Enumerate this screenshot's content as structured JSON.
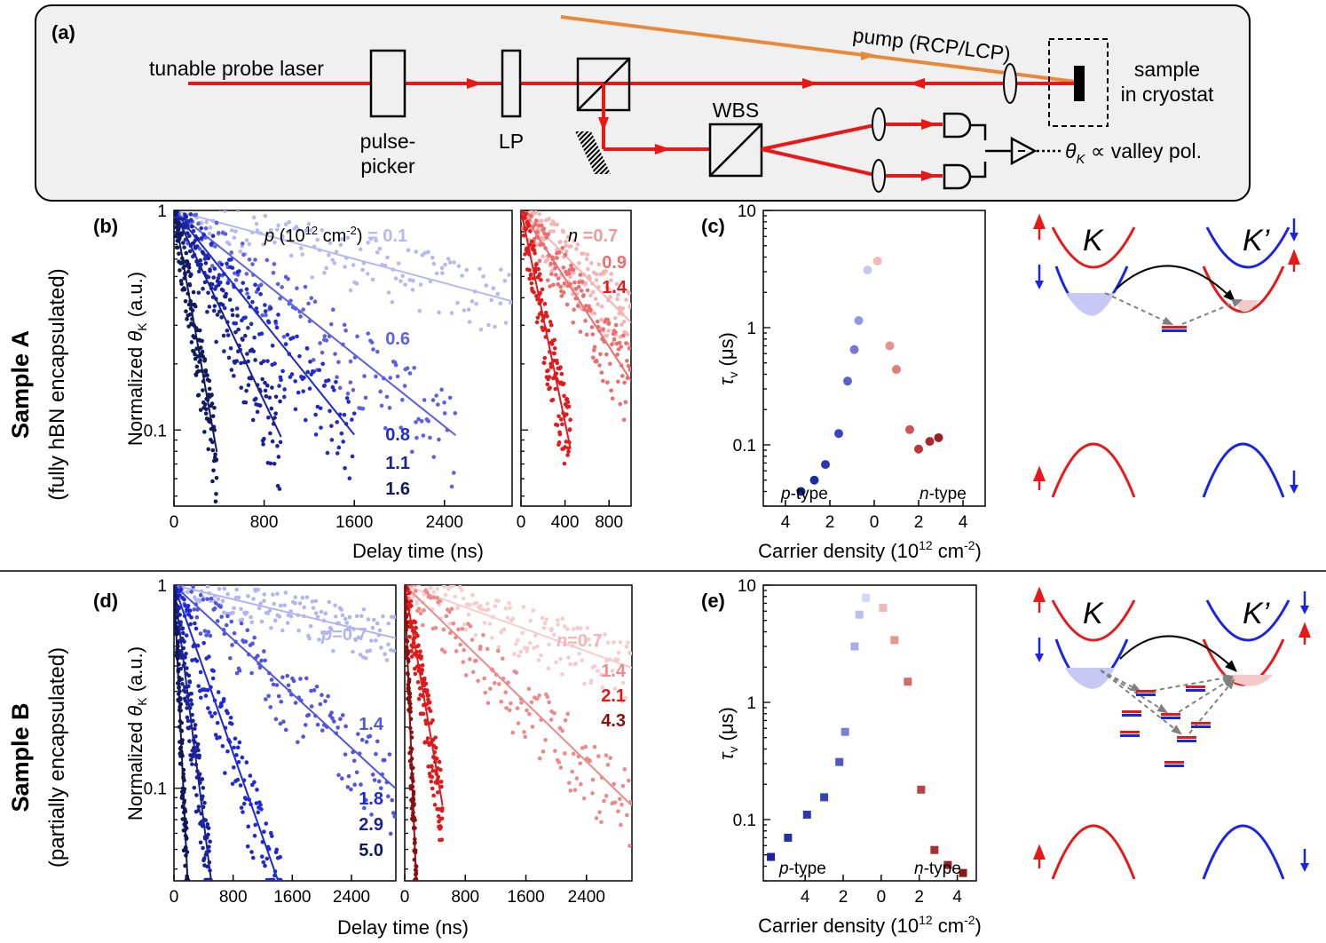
{
  "setup": {
    "label": "(a)",
    "probe": "tunable probe laser",
    "pump": "pump (RCP/LCP)",
    "pulse_picker": [
      "pulse-",
      "picker"
    ],
    "lp": "LP",
    "wbs": "WBS",
    "sample": [
      "sample",
      "in cryostat"
    ],
    "signal_theta": "θ",
    "signal_sub": "K",
    "signal_rest": " ∝ valley pol."
  },
  "rows": {
    "a_title": "Sample A",
    "a_sub": "(fully hBN encapsulated)",
    "b_title": "Sample B",
    "b_sub": "(partially encapsulated)"
  },
  "shared": {
    "ylabel_main": "Normalized ",
    "ylabel_theta": "θ",
    "ylabel_sub": "K",
    "ylabel_tail": " (a.u.)",
    "xlabel_delay": "Delay time (ns)",
    "tau_symbol": "τ",
    "tau_sub": "v",
    "tau_unit": " (μs)",
    "carrier_main": "Carrier density (10",
    "carrier_exp": "12",
    "carrier_tail": " cm",
    "carrier_exp2": "-2",
    "carrier_close": ")",
    "p_type_p": "p",
    "p_type_rest": "-type",
    "n_type_n": "n",
    "n_type_rest": "-type",
    "valley_K": "K",
    "valley_Kp": "K’"
  },
  "panel_b": {
    "label": "(b)",
    "legend_p": "p",
    "legend_unit": " (10",
    "legend_exp": "12",
    "legend_cm": " cm",
    "legend_exp2": "-2",
    "legend_close": ")",
    "legend_eq": " = 0.1",
    "n_label": "n",
    "n_eq": " =0.7"
  },
  "panel_d": {
    "label": "(d)",
    "p_label": "p",
    "p_eq": "=0.7",
    "n_label": "n",
    "n_eq": "=0.7"
  },
  "panel_c": {
    "label": "(c)"
  },
  "panel_e": {
    "label": "(e)"
  },
  "chart_data": [
    {
      "id": "b_left",
      "type": "scatter",
      "title": "",
      "xlabel": "Delay time (ns)",
      "ylabel": "Normalized θK (a.u.)",
      "xlim": [
        0,
        3000
      ],
      "ylim": [
        0.045,
        1
      ],
      "yscale": "log",
      "xticks": [
        "0",
        "800",
        "1600",
        "2400"
      ],
      "yticks": [
        "1",
        "0.1"
      ],
      "series": [
        {
          "name": "0.1",
          "tau_ns": 3150,
          "xmax": 3000,
          "color": "#b6b8f0",
          "label": "0.1"
        },
        {
          "name": "0.6",
          "tau_ns": 1060,
          "xmax": 2500,
          "color": "#5c60e6",
          "label": "0.6"
        },
        {
          "name": "0.8",
          "tau_ns": 680,
          "xmax": 1600,
          "color": "#1f2acf",
          "label": "0.8"
        },
        {
          "name": "1.1",
          "tau_ns": 400,
          "xmax": 950,
          "color": "#1a2299",
          "label": "1.1"
        },
        {
          "name": "1.6",
          "tau_ns": 150,
          "xmax": 380,
          "color": "#101a5e",
          "label": "1.6"
        }
      ]
    },
    {
      "id": "b_right",
      "type": "scatter",
      "title": "",
      "xlabel": "",
      "ylabel": "",
      "xlim": [
        0,
        1000
      ],
      "ylim": [
        0.045,
        1
      ],
      "yscale": "log",
      "xticks": [
        "0",
        "400",
        "800"
      ],
      "series": [
        {
          "name": "0.7",
          "tau_ns": 850,
          "xmax": 1000,
          "color": "#f5b4b4",
          "label": "0.7"
        },
        {
          "name": "0.9",
          "tau_ns": 560,
          "xmax": 1000,
          "color": "#ec6e6e",
          "label": "0.9"
        },
        {
          "name": "1.4",
          "tau_ns": 180,
          "xmax": 450,
          "color": "#e01c1c",
          "label": "1.4"
        }
      ]
    },
    {
      "id": "c",
      "type": "scatter",
      "title": "",
      "xlabel": "Carrier density (10^12 cm^-2)",
      "ylabel": "τv (μs)",
      "xlim": [
        -5,
        5
      ],
      "ylim": [
        0.03,
        10
      ],
      "yscale": "log",
      "xticks": [
        "4",
        "2",
        "0",
        "2",
        "4"
      ],
      "yticks": [
        "10",
        "1",
        "0.1"
      ],
      "points": [
        {
          "x": -3.3,
          "y": 0.04,
          "color": "#17228a"
        },
        {
          "x": -2.7,
          "y": 0.05,
          "color": "#1c2aa5"
        },
        {
          "x": -2.2,
          "y": 0.068,
          "color": "#2a36b9"
        },
        {
          "x": -1.6,
          "y": 0.125,
          "color": "#3a44c0"
        },
        {
          "x": -1.2,
          "y": 0.35,
          "color": "#5b61cc"
        },
        {
          "x": -0.9,
          "y": 0.65,
          "color": "#7479d6"
        },
        {
          "x": -0.7,
          "y": 1.15,
          "color": "#9396e0"
        },
        {
          "x": -0.3,
          "y": 3.1,
          "color": "#c6c8f0"
        },
        {
          "x": 0.15,
          "y": 3.7,
          "color": "#f4b8b8"
        },
        {
          "x": 0.7,
          "y": 0.7,
          "color": "#ec8f8f"
        },
        {
          "x": 1.0,
          "y": 0.44,
          "color": "#e57c7c"
        },
        {
          "x": 1.6,
          "y": 0.135,
          "color": "#d15454"
        },
        {
          "x": 2.0,
          "y": 0.092,
          "color": "#bb3636"
        },
        {
          "x": 2.5,
          "y": 0.107,
          "color": "#a82a2a"
        },
        {
          "x": 2.9,
          "y": 0.115,
          "color": "#9c2020"
        }
      ]
    },
    {
      "id": "d_left",
      "type": "scatter",
      "title": "",
      "xlabel": "Delay time (ns)",
      "ylabel": "Normalized θK (a.u.)",
      "xlim": [
        0,
        3000
      ],
      "ylim": [
        0.035,
        1
      ],
      "yscale": "log",
      "xticks": [
        "0",
        "800",
        "1600",
        "2400"
      ],
      "yticks": [
        "1",
        "0.1"
      ],
      "series": [
        {
          "name": "0.7",
          "tau_ns": 5000,
          "xmax": 3000,
          "color": "#b2b5f0",
          "label": "0.7"
        },
        {
          "name": "1.4",
          "tau_ns": 1300,
          "xmax": 3000,
          "color": "#5055e4",
          "label": "1.4"
        },
        {
          "name": "1.8",
          "tau_ns": 420,
          "xmax": 1600,
          "color": "#1f28d8",
          "label": "1.8"
        },
        {
          "name": "2.9",
          "tau_ns": 150,
          "xmax": 500,
          "color": "#1a2299",
          "label": "2.9"
        },
        {
          "name": "5.0",
          "tau_ns": 55,
          "xmax": 220,
          "color": "#0f1858",
          "label": "5.0"
        }
      ]
    },
    {
      "id": "d_right",
      "type": "scatter",
      "title": "",
      "xlabel": "",
      "ylabel": "",
      "xlim": [
        0,
        3000
      ],
      "ylim": [
        0.035,
        1
      ],
      "yscale": "log",
      "xticks": [
        "0",
        "800",
        "1600",
        "2400"
      ],
      "series": [
        {
          "name": "0.7",
          "tau_ns": 3200,
          "xmax": 3000,
          "color": "#f7cccc",
          "label": "0.7"
        },
        {
          "name": "1.4",
          "tau_ns": 1200,
          "xmax": 3000,
          "color": "#ef8888",
          "label": "1.4"
        },
        {
          "name": "2.1",
          "tau_ns": 200,
          "xmax": 500,
          "color": "#e01a1a",
          "label": "2.1"
        },
        {
          "name": "4.3",
          "tau_ns": 45,
          "xmax": 200,
          "color": "#8a0f0f",
          "label": "4.3"
        }
      ]
    },
    {
      "id": "e",
      "type": "scatter",
      "title": "",
      "xlabel": "Carrier density (10^12 cm^-2)",
      "ylabel": "τv (μs)",
      "xlim": [
        -6.2,
        5
      ],
      "ylim": [
        0.03,
        10
      ],
      "yscale": "log",
      "xticks": [
        "4",
        "2",
        "0",
        "2",
        "4"
      ],
      "yticks": [
        "10",
        "1",
        "0.1"
      ],
      "points": [
        {
          "x": -5.8,
          "y": 0.048,
          "color": "#1c2499"
        },
        {
          "x": -4.9,
          "y": 0.07,
          "color": "#2430a8"
        },
        {
          "x": -3.9,
          "y": 0.11,
          "color": "#3038b0"
        },
        {
          "x": -3.0,
          "y": 0.155,
          "color": "#3a42b8"
        },
        {
          "x": -2.2,
          "y": 0.31,
          "color": "#5058c8"
        },
        {
          "x": -1.9,
          "y": 0.56,
          "color": "#7a80d4"
        },
        {
          "x": -1.4,
          "y": 3.0,
          "color": "#a8acea"
        },
        {
          "x": -1.15,
          "y": 5.6,
          "color": "#bcbff0"
        },
        {
          "x": -0.8,
          "y": 7.8,
          "color": "#d4d6f6"
        },
        {
          "x": 0.1,
          "y": 6.4,
          "color": "#f2b8b8"
        },
        {
          "x": 0.7,
          "y": 3.4,
          "color": "#e69494"
        },
        {
          "x": 1.4,
          "y": 1.5,
          "color": "#d26a6a"
        },
        {
          "x": 2.1,
          "y": 0.18,
          "color": "#b84444"
        },
        {
          "x": 2.8,
          "y": 0.055,
          "color": "#a83030"
        },
        {
          "x": 3.5,
          "y": 0.041,
          "color": "#962424"
        },
        {
          "x": 4.3,
          "y": 0.035,
          "color": "#841a1a"
        }
      ]
    }
  ]
}
